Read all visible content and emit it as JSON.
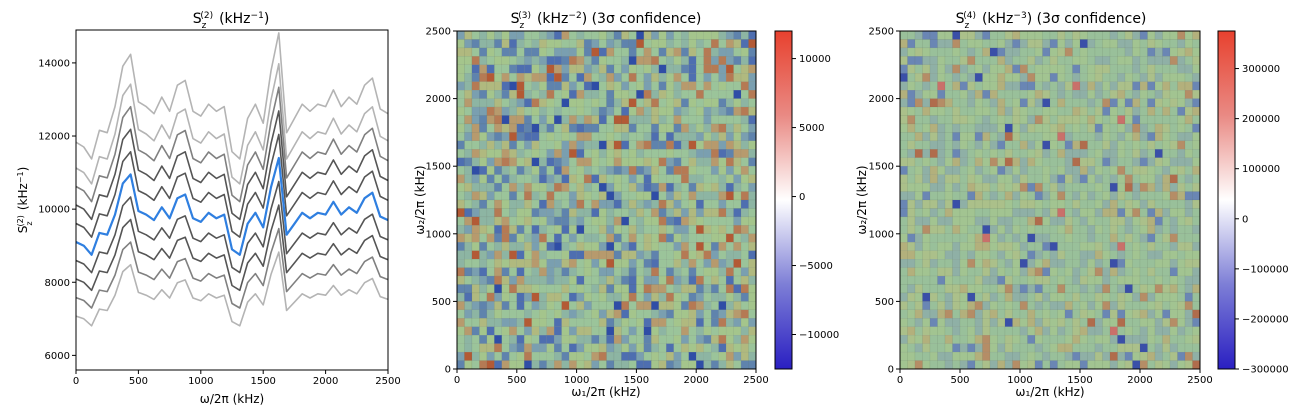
{
  "chart_data": [
    {
      "type": "line",
      "title_main": "S",
      "title_sub": "z",
      "title_sup": "(2)",
      "title_unit": "(kHz",
      "title_unit_exp": "−1",
      "title_close": ")",
      "xlabel": "ω/2π (kHz)",
      "ylabel_main": "S",
      "ylabel_sub": "z",
      "ylabel_sup": "(2)",
      "ylabel_unit": "(kHz",
      "ylabel_unit_exp": "−1",
      "ylabel_close": ")",
      "xlim": [
        0,
        2500
      ],
      "ylim": [
        5600,
        14900
      ],
      "xticks": [
        0,
        500,
        1000,
        1500,
        2000,
        2500
      ],
      "yticks": [
        6000,
        8000,
        10000,
        12000,
        14000
      ],
      "grid": false,
      "x": [
        0,
        62.5,
        125,
        187.5,
        250,
        312.5,
        375,
        437.5,
        500,
        562.5,
        625,
        687.5,
        750,
        812.5,
        875,
        937.5,
        1000,
        1062.5,
        1125,
        1187.5,
        1250,
        1312.5,
        1375,
        1437.5,
        1500,
        1562.5,
        1625,
        1687.5,
        1750,
        1812.5,
        1875,
        1937.5,
        2000,
        2062.5,
        2125,
        2187.5,
        2250,
        2312.5,
        2375,
        2437.5,
        2500
      ],
      "center": [
        9100,
        9000,
        8750,
        9350,
        9300,
        9850,
        10700,
        10950,
        9950,
        9850,
        9700,
        10050,
        9750,
        10300,
        10400,
        9750,
        9650,
        9900,
        9750,
        9850,
        8900,
        8750,
        9600,
        9900,
        9500,
        10600,
        11400,
        9300,
        9600,
        9900,
        9750,
        9900,
        9850,
        10200,
        9850,
        10050,
        9900,
        10300,
        10450,
        9800,
        9700
      ],
      "band_offsets": [
        -2200,
        -1650,
        -1100,
        -550,
        550,
        1100,
        1650,
        2200,
        2950
      ],
      "band_scales": [
        0.76,
        0.82,
        0.88,
        0.94,
        1.06,
        1.12,
        1.18,
        1.24,
        1.3
      ],
      "colors": {
        "center": "#2f7fe0",
        "inner": "#555555",
        "mid": "#808080",
        "outer": "#b4b4b4"
      }
    },
    {
      "type": "heatmap",
      "title_main": "S",
      "title_sub": "z",
      "title_sup": "(3)",
      "title_unit": "(kHz",
      "title_unit_exp": "−2",
      "title_close": ") (3σ confidence)",
      "xlabel": "ω₁/2π (kHz)",
      "ylabel": "ω₂/2π (kHz)",
      "xlim": [
        0,
        2500
      ],
      "ylim": [
        0,
        2500
      ],
      "xticks": [
        0,
        500,
        1000,
        1500,
        2000,
        2500
      ],
      "yticks": [
        0,
        500,
        1000,
        1500,
        2000,
        2500
      ],
      "grid_n": 40,
      "seed": 17,
      "colorbar_range": [
        -12500,
        12000
      ],
      "colorbar_ticks": [
        -10000,
        -5000,
        0,
        5000,
        10000
      ],
      "colorbar_tick_labels": [
        "−10000",
        "−5000",
        "0",
        "5000",
        "10000"
      ],
      "cell_palette": [
        "#2f4da6",
        "#4e6eb0",
        "#5f83ad",
        "#7a9fb0",
        "#8db5a3",
        "#9bc49a",
        "#a4c58c",
        "#b0b97f",
        "#b79a6d",
        "#b57a54",
        "#b35a35"
      ],
      "cell_weights": [
        0.02,
        0.05,
        0.08,
        0.1,
        0.16,
        0.22,
        0.13,
        0.09,
        0.08,
        0.05,
        0.02
      ]
    },
    {
      "type": "heatmap",
      "title_main": "S",
      "title_sub": "z",
      "title_sup": "(4)",
      "title_unit": "(kHz",
      "title_unit_exp": "−3",
      "title_close": ") (3σ confidence)",
      "xlabel": "ω₁/2π (kHz)",
      "ylabel": "ω₂/2π (kHz)",
      "xlim": [
        0,
        2500
      ],
      "ylim": [
        0,
        2500
      ],
      "xticks": [
        0,
        500,
        1000,
        1500,
        2000,
        2500
      ],
      "yticks": [
        0,
        500,
        1000,
        1500,
        2000,
        2500
      ],
      "grid_n": 40,
      "seed": 91,
      "colorbar_range": [
        -300000,
        375000
      ],
      "colorbar_ticks": [
        -300000,
        -200000,
        -100000,
        0,
        100000,
        200000,
        300000
      ],
      "colorbar_tick_labels": [
        "−300000",
        "−200000",
        "−100000",
        "0",
        "100000",
        "200000",
        "300000"
      ],
      "cell_palette": [
        "#3a4fa8",
        "#6a86b4",
        "#8fb0a6",
        "#99c09a",
        "#a2c491",
        "#abc08a",
        "#b3b07c",
        "#b58d66",
        "#b06c4c",
        "#c9706a"
      ],
      "cell_weights": [
        0.015,
        0.06,
        0.18,
        0.3,
        0.2,
        0.12,
        0.07,
        0.035,
        0.015,
        0.005
      ]
    }
  ],
  "colorbar_colors": [
    "#2a1fc2",
    "#7d7ed6",
    "#ffffff",
    "#e98a84",
    "#e8412e"
  ]
}
